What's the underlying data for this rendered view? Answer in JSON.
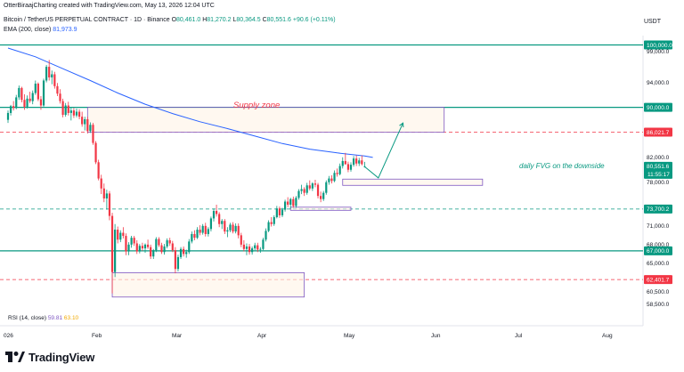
{
  "header": {
    "created_line": "OtterBiraajCharting created with TradingView.com, May 13, 2026 12:04 UTC",
    "symbol": "Bitcoin / TetherUS PERPETUAL CONTRACT · 1D · Binance",
    "o_label": "O",
    "o_value": "80,461.0",
    "h_label": "H",
    "h_value": "81,270.2",
    "l_label": "L",
    "l_value": "80,364.5",
    "c_label": "C",
    "c_value": "80,551.6",
    "change": "+90.6 (+0.11%)",
    "ema_label": "EMA (200, close)",
    "ema_value": "81,973.9",
    "currency": "USDT"
  },
  "rsi": {
    "label": "RSI (14, close)",
    "value1": "59.81",
    "value2": "63.10"
  },
  "logo": {
    "text": "TradingView",
    "icon": "tradingview-logo-icon"
  },
  "colors": {
    "up": "#089981",
    "down": "#f23645",
    "ema": "#2962ff",
    "level_green": "#089981",
    "level_red": "#f23645",
    "zone_border": "#7e57c2",
    "zone_fill": "#fff3e6",
    "annotation_red": "#f23645",
    "annotation_green": "#089981"
  },
  "chart_data": {
    "type": "candlestick",
    "title": "",
    "x_axis_labels": [
      "026",
      "Feb",
      "Mar",
      "Apr",
      "May",
      "Jun",
      "Jul",
      "Aug"
    ],
    "y_axis_ticks": [
      "99,000.0",
      "94,000.0",
      "90,000.0",
      "86,021.7",
      "82,000.0",
      "78,000.0",
      "73,700.2",
      "71,000.0",
      "68,000.0",
      "67,000.0",
      "65,000.0",
      "62,401.7",
      "60,500.0",
      "58,500.0"
    ],
    "y_range": [
      57000,
      101500
    ],
    "price_label": {
      "value": "80,551.6",
      "countdown": "11:55:17"
    },
    "levels": [
      {
        "label": "100,000.0",
        "value": 100000,
        "style": "solid",
        "color": "green",
        "badge": "green"
      },
      {
        "label": "90,000.0",
        "value": 90000,
        "style": "solid",
        "color": "green",
        "badge": "green"
      },
      {
        "label": "86,021.7",
        "value": 86021.7,
        "style": "dashed",
        "color": "red",
        "badge": "red"
      },
      {
        "label": "73,700.2",
        "value": 73700.2,
        "style": "dashed",
        "color": "green",
        "badge": "green"
      },
      {
        "label": "67,000.0",
        "value": 67000,
        "style": "solid",
        "color": "green",
        "badge": "green"
      },
      {
        "label": "62,401.7",
        "value": 62401.7,
        "style": "dashed",
        "color": "red",
        "badge": "red"
      }
    ],
    "zones": [
      {
        "label": "Supply zone",
        "top": 90000,
        "bottom": 86000,
        "start_day": 29,
        "end_day": 159
      },
      {
        "label": "daily FVG on the downside",
        "top": 78500,
        "bottom": 77500,
        "start_day": 122,
        "end_day": 173
      },
      {
        "label": "",
        "top": 74000,
        "bottom": 73500,
        "start_day": 103,
        "end_day": 125
      },
      {
        "label": "",
        "top": 63500,
        "bottom": 59600,
        "start_day": 38,
        "end_day": 108
      }
    ],
    "projection": [
      {
        "day": 130,
        "price": 80500
      },
      {
        "day": 135,
        "price": 78700
      },
      {
        "day": 144,
        "price": 87500
      }
    ],
    "ema_points": [
      [
        0,
        99500
      ],
      [
        10,
        98100
      ],
      [
        20,
        96200
      ],
      [
        30,
        94300
      ],
      [
        40,
        92300
      ],
      [
        50,
        90500
      ],
      [
        60,
        89000
      ],
      [
        70,
        87700
      ],
      [
        80,
        86600
      ],
      [
        90,
        85400
      ],
      [
        100,
        84200
      ],
      [
        110,
        83300
      ],
      [
        120,
        82700
      ],
      [
        130,
        82200
      ],
      [
        133,
        81974
      ]
    ],
    "candles": [
      [
        0,
        88000,
        89500,
        87500,
        89100
      ],
      [
        1,
        89100,
        90400,
        88700,
        90200
      ],
      [
        2,
        90200,
        91000,
        89500,
        89900
      ],
      [
        3,
        89900,
        92000,
        89700,
        91600
      ],
      [
        4,
        91600,
        93500,
        91200,
        93100
      ],
      [
        5,
        93100,
        93300,
        90800,
        91200
      ],
      [
        6,
        91200,
        92100,
        89600,
        90100
      ],
      [
        7,
        90100,
        91900,
        89800,
        91400
      ],
      [
        8,
        91400,
        92500,
        90700,
        91000
      ],
      [
        9,
        91000,
        92700,
        90500,
        92300
      ],
      [
        10,
        92300,
        94300,
        92000,
        93800
      ],
      [
        11,
        93800,
        94000,
        91000,
        91300
      ],
      [
        12,
        91300,
        91800,
        89600,
        90300
      ],
      [
        13,
        90300,
        94600,
        90100,
        94300
      ],
      [
        14,
        94300,
        96800,
        94000,
        96500
      ],
      [
        15,
        96500,
        97600,
        94300,
        94800
      ],
      [
        16,
        94800,
        95900,
        93700,
        95300
      ],
      [
        17,
        95300,
        95700,
        93000,
        93400
      ],
      [
        18,
        93400,
        93900,
        91800,
        92200
      ],
      [
        19,
        92200,
        92900,
        90600,
        91000
      ],
      [
        20,
        91000,
        91400,
        88400,
        88800
      ],
      [
        21,
        88800,
        90700,
        88500,
        90300
      ],
      [
        22,
        90300,
        90900,
        88700,
        89100
      ],
      [
        23,
        89100,
        90000,
        87900,
        89500
      ],
      [
        24,
        89500,
        89900,
        88300,
        88700
      ],
      [
        25,
        88700,
        89800,
        88400,
        89300
      ],
      [
        26,
        89300,
        89700,
        88100,
        88500
      ],
      [
        27,
        88500,
        89300,
        86900,
        87300
      ],
      [
        28,
        87300,
        88500,
        86300,
        88100
      ],
      [
        29,
        88100,
        88500,
        85800,
        86200
      ],
      [
        30,
        86200,
        87600,
        85900,
        87200
      ],
      [
        31,
        87200,
        87500,
        84000,
        84300
      ],
      [
        32,
        84300,
        84600,
        80900,
        81200
      ],
      [
        33,
        81200,
        81600,
        78300,
        78600
      ],
      [
        34,
        78600,
        79200,
        76100,
        77000
      ],
      [
        35,
        77000,
        77800,
        74800,
        75400
      ],
      [
        36,
        75400,
        76800,
        73600,
        76200
      ],
      [
        37,
        76200,
        76600,
        71900,
        72600
      ],
      [
        38,
        72600,
        73100,
        60200,
        63600
      ],
      [
        39,
        63600,
        71300,
        62800,
        70400
      ],
      [
        40,
        70400,
        70900,
        68200,
        68800
      ],
      [
        41,
        68800,
        70300,
        68400,
        69900
      ],
      [
        42,
        69900,
        70800,
        69000,
        69400
      ],
      [
        43,
        69400,
        69800,
        66300,
        66900
      ],
      [
        44,
        66900,
        68400,
        66300,
        68000
      ],
      [
        45,
        68000,
        69400,
        67500,
        69100
      ],
      [
        46,
        69100,
        69400,
        67800,
        68200
      ],
      [
        47,
        68200,
        68700,
        66500,
        66900
      ],
      [
        48,
        66900,
        68100,
        66600,
        67800
      ],
      [
        49,
        67800,
        68300,
        67000,
        67400
      ],
      [
        50,
        67400,
        68200,
        66700,
        68000
      ],
      [
        51,
        68000,
        68800,
        67300,
        67600
      ],
      [
        52,
        67600,
        68000,
        65700,
        66100
      ],
      [
        53,
        66100,
        67300,
        65700,
        67100
      ],
      [
        54,
        67100,
        69200,
        66800,
        68900
      ],
      [
        55,
        68900,
        69200,
        67600,
        67900
      ],
      [
        56,
        67900,
        68300,
        66500,
        66800
      ],
      [
        57,
        66800,
        68100,
        66400,
        67700
      ],
      [
        58,
        67700,
        69000,
        67400,
        68700
      ],
      [
        59,
        68700,
        69100,
        67800,
        68200
      ],
      [
        60,
        68200,
        68600,
        66800,
        67100
      ],
      [
        61,
        67100,
        67600,
        63400,
        64100
      ],
      [
        62,
        64100,
        66400,
        63700,
        66000
      ],
      [
        63,
        66000,
        67600,
        65700,
        67300
      ],
      [
        64,
        67300,
        67700,
        66100,
        66500
      ],
      [
        65,
        66500,
        67200,
        65900,
        66800
      ],
      [
        66,
        66800,
        68900,
        66500,
        68500
      ],
      [
        67,
        68500,
        70100,
        68200,
        69700
      ],
      [
        68,
        69700,
        70300,
        68700,
        69100
      ],
      [
        69,
        69100,
        70800,
        68900,
        70400
      ],
      [
        70,
        70400,
        71100,
        69500,
        69900
      ],
      [
        71,
        69900,
        71300,
        69600,
        71000
      ],
      [
        72,
        71000,
        71500,
        69300,
        69700
      ],
      [
        73,
        69700,
        70800,
        69300,
        70500
      ],
      [
        74,
        70500,
        72500,
        70100,
        72200
      ],
      [
        75,
        72200,
        73800,
        71700,
        73400
      ],
      [
        76,
        73400,
        74400,
        72500,
        72900
      ],
      [
        77,
        72900,
        73200,
        70800,
        71300
      ],
      [
        78,
        71300,
        72100,
        70500,
        71800
      ],
      [
        79,
        71800,
        72100,
        69700,
        70100
      ],
      [
        80,
        70100,
        70800,
        69200,
        70300
      ],
      [
        81,
        70300,
        71500,
        70000,
        71200
      ],
      [
        82,
        71200,
        71600,
        69800,
        70100
      ],
      [
        83,
        70100,
        71400,
        69800,
        71000
      ],
      [
        84,
        71000,
        71400,
        69000,
        69500
      ],
      [
        85,
        69500,
        69900,
        67600,
        68000
      ],
      [
        86,
        68000,
        68700,
        66900,
        67300
      ],
      [
        87,
        67300,
        68200,
        66300,
        67700
      ],
      [
        88,
        67700,
        68100,
        66400,
        66800
      ],
      [
        89,
        66800,
        67700,
        66400,
        67400
      ],
      [
        90,
        67400,
        68300,
        67100,
        67900
      ],
      [
        91,
        67900,
        68300,
        66800,
        67200
      ],
      [
        92,
        67200,
        67600,
        66700,
        67300
      ],
      [
        93,
        67300,
        69100,
        67100,
        68800
      ],
      [
        94,
        68800,
        70600,
        68500,
        70200
      ],
      [
        95,
        70200,
        71900,
        70000,
        71600
      ],
      [
        96,
        71600,
        72400,
        70900,
        71300
      ],
      [
        97,
        71300,
        72700,
        71000,
        72400
      ],
      [
        98,
        72400,
        74200,
        72200,
        73800
      ],
      [
        99,
        73800,
        74100,
        72300,
        72700
      ],
      [
        100,
        72700,
        73900,
        72400,
        73600
      ],
      [
        101,
        73600,
        75200,
        73300,
        74900
      ],
      [
        102,
        74900,
        75600,
        74000,
        74400
      ],
      [
        103,
        74400,
        75500,
        73700,
        75300
      ],
      [
        104,
        75300,
        75700,
        73900,
        74200
      ],
      [
        105,
        74200,
        75800,
        73900,
        75500
      ],
      [
        106,
        75500,
        76900,
        75200,
        76600
      ],
      [
        107,
        76600,
        77600,
        76100,
        76900
      ],
      [
        108,
        76900,
        77200,
        75800,
        76300
      ],
      [
        109,
        76300,
        77900,
        76000,
        77500
      ],
      [
        110,
        77500,
        78300,
        76700,
        77000
      ],
      [
        111,
        77000,
        78000,
        76600,
        77800
      ],
      [
        112,
        77800,
        78400,
        77200,
        77600
      ],
      [
        113,
        77600,
        77900,
        75400,
        75800
      ],
      [
        114,
        75800,
        76500,
        74800,
        75300
      ],
      [
        115,
        75300,
        76600,
        75000,
        76300
      ],
      [
        116,
        76300,
        78300,
        76000,
        78000
      ],
      [
        117,
        78000,
        79000,
        77600,
        78600
      ],
      [
        118,
        78600,
        79100,
        77800,
        78200
      ],
      [
        119,
        78200,
        79900,
        78000,
        79500
      ],
      [
        120,
        79500,
        80200,
        78900,
        79300
      ],
      [
        121,
        79300,
        81000,
        79100,
        80600
      ],
      [
        122,
        80600,
        82000,
        80200,
        81400
      ],
      [
        123,
        81400,
        82700,
        80800,
        80900
      ],
      [
        124,
        80900,
        81300,
        79600,
        80000
      ],
      [
        125,
        80000,
        81200,
        79700,
        80800
      ],
      [
        126,
        80800,
        82200,
        80500,
        81800
      ],
      [
        127,
        81800,
        82300,
        80600,
        81000
      ],
      [
        128,
        81000,
        81900,
        80600,
        81500
      ],
      [
        129,
        81500,
        82300,
        80700,
        80900
      ],
      [
        130,
        80461,
        81270,
        80364,
        80552
      ]
    ]
  }
}
